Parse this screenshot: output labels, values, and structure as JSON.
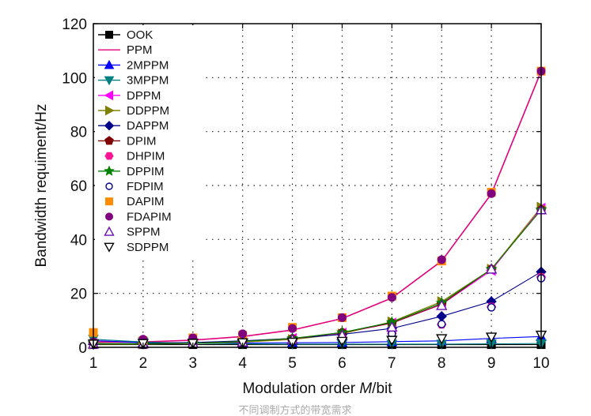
{
  "chart_data": {
    "type": "scatter",
    "xlabel_prefix": "Modulation order ",
    "xlabel_var": "M",
    "xlabel_suffix": "/bit",
    "ylabel": "Bandwidth requiment/Hz",
    "xlim": [
      1,
      10
    ],
    "ylim": [
      0,
      120
    ],
    "xticks": [
      1,
      2,
      3,
      4,
      5,
      6,
      7,
      8,
      9,
      10
    ],
    "yticks": [
      0,
      20,
      40,
      60,
      80,
      100,
      120
    ],
    "grid": "dotted",
    "legend_position": "top-left",
    "caption": "不同调制方式的带宽需求",
    "series": [
      {
        "name": "OOK",
        "color": "#000000",
        "marker": "square",
        "line": true,
        "x": [
          1,
          2,
          3,
          4,
          5,
          6,
          7,
          8,
          9,
          10
        ],
        "y": [
          1,
          1,
          1,
          1,
          1,
          1,
          1,
          1,
          1,
          1
        ]
      },
      {
        "name": "PPM",
        "color": "#e2007a",
        "marker": "none",
        "line": true,
        "x": [
          1,
          2,
          3,
          4,
          5,
          6,
          7,
          8,
          9,
          10
        ],
        "y": [
          2,
          2,
          2.67,
          4,
          6.4,
          10.67,
          18.29,
          32,
          56.89,
          102.4
        ]
      },
      {
        "name": "2MPPM",
        "color": "#0000ff",
        "marker": "triangle-up",
        "line": true,
        "x": [
          1,
          2,
          3,
          4,
          5,
          6,
          7,
          8,
          9,
          10
        ],
        "y": [
          2.5,
          1.8,
          1.6,
          1.6,
          1.7,
          1.8,
          2.1,
          2.4,
          3.3,
          4.0
        ]
      },
      {
        "name": "3MPPM",
        "color": "#008080",
        "marker": "triangle-down",
        "line": true,
        "x": [
          1,
          2,
          3,
          4,
          5,
          6,
          7,
          8,
          9,
          10
        ],
        "y": [
          3.0,
          2.0,
          1.5,
          1.3,
          1.2,
          1.2,
          1.2,
          1.2,
          1.3,
          1.4
        ]
      },
      {
        "name": "DPPM",
        "color": "#ff00ff",
        "marker": "triangle-left",
        "line": true,
        "x": [
          1,
          2,
          3,
          4,
          5,
          6,
          7,
          8,
          9,
          10
        ],
        "y": [
          1.33,
          1.33,
          1.6,
          2.35,
          3.3,
          5.3,
          9.0,
          15.9,
          28.5,
          51.6
        ]
      },
      {
        "name": "DDPPM",
        "color": "#808000",
        "marker": "triangle-right",
        "line": true,
        "x": [
          1,
          2,
          3,
          4,
          5,
          6,
          7,
          8,
          9,
          10
        ],
        "y": [
          1.2,
          1.2,
          1.45,
          1.9,
          2.9,
          5.0,
          9.5,
          17.0,
          29.0,
          52.0
        ]
      },
      {
        "name": "DAPPM",
        "color": "#00008b",
        "marker": "diamond",
        "line": true,
        "x": [
          1,
          2,
          3,
          4,
          5,
          6,
          7,
          8,
          9,
          10
        ],
        "y": [
          1.3,
          1.5,
          1.8,
          2.4,
          3.3,
          4.8,
          7.0,
          11.5,
          17.0,
          28.0
        ]
      },
      {
        "name": "DPIM",
        "color": "#800000",
        "marker": "pentagon",
        "line": true,
        "x": [
          1,
          2,
          3,
          4,
          5,
          6,
          7,
          8,
          9,
          10
        ],
        "y": [
          1.5,
          1.3,
          1.5,
          2.2,
          3.2,
          5.5,
          9.0,
          16.0,
          29.0,
          51.0
        ]
      },
      {
        "name": "DHPIM",
        "color": "#ff1493",
        "marker": "hexagon",
        "line": false,
        "x": [
          1,
          2,
          3,
          4,
          5,
          6,
          7,
          8,
          9,
          10
        ],
        "y": [
          1.5,
          1.3,
          1.4,
          1.8,
          2.5,
          3.6,
          5.2,
          8.5,
          15.0,
          26.0
        ]
      },
      {
        "name": "DPPIM",
        "color": "#008000",
        "marker": "star",
        "line": true,
        "x": [
          1,
          2,
          3,
          4,
          5,
          6,
          7,
          8,
          9,
          10
        ],
        "y": [
          1.4,
          1.3,
          1.5,
          2.2,
          3.3,
          5.5,
          9.3,
          16.5,
          29.0,
          51.0
        ]
      },
      {
        "name": "FDPIM",
        "color": "#00008b",
        "marker": "circle-open",
        "line": false,
        "x": [
          1,
          2,
          3,
          4,
          5,
          6,
          7,
          8,
          9,
          10
        ],
        "y": [
          1.2,
          1.1,
          1.2,
          1.5,
          2.0,
          2.9,
          5.0,
          8.6,
          14.8,
          25.6
        ]
      },
      {
        "name": "DAPIM",
        "color": "#ff8c00",
        "marker": "square",
        "line": false,
        "x": [
          1,
          2,
          3,
          4,
          5,
          6,
          7,
          8,
          9,
          10
        ],
        "y": [
          5.5,
          2.5,
          3.5,
          4.5,
          7.4,
          11.0,
          19.0,
          32.0,
          57.5,
          102.4
        ]
      },
      {
        "name": "FDAPIM",
        "color": "#800080",
        "marker": "circle",
        "line": false,
        "x": [
          1,
          2,
          3,
          4,
          5,
          6,
          7,
          8,
          9,
          10
        ],
        "y": [
          2.0,
          3.0,
          3.5,
          5.0,
          7.0,
          11.0,
          18.5,
          32.5,
          57.0,
          102.4
        ]
      },
      {
        "name": "SPPM",
        "color": "#6a0dad",
        "marker": "triangle-up-open",
        "line": false,
        "x": [
          1,
          2,
          3,
          4,
          5,
          6,
          7,
          8,
          9,
          10
        ],
        "y": [
          1.2,
          1.3,
          1.5,
          2.0,
          2.9,
          4.5,
          7.5,
          15.5,
          29.0,
          51.0
        ]
      },
      {
        "name": "SDPPM",
        "color": "#000000",
        "marker": "triangle-down-open",
        "line": false,
        "x": [
          1,
          2,
          3,
          4,
          5,
          6,
          7,
          8,
          9,
          10
        ],
        "y": [
          1.2,
          1.4,
          1.5,
          1.7,
          1.9,
          2.2,
          2.6,
          3.2,
          3.8,
          4.5
        ]
      }
    ]
  }
}
